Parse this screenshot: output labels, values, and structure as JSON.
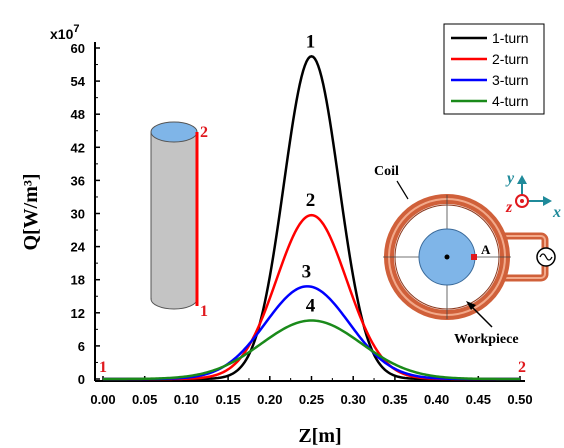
{
  "chart_data": {
    "type": "line",
    "xlabel": "Z[m]",
    "ylabel": "Q[W/m³]",
    "y_multiplier": "x10",
    "y_multiplier_exp": "7",
    "xlim": [
      0.0,
      0.5
    ],
    "ylim": [
      0,
      60
    ],
    "x_ticks": [
      "0.00",
      "0.05",
      "0.10",
      "0.15",
      "0.20",
      "0.25",
      "0.30",
      "0.35",
      "0.40",
      "0.45",
      "0.50"
    ],
    "y_ticks": [
      "0",
      "6",
      "12",
      "18",
      "24",
      "30",
      "36",
      "42",
      "48",
      "54",
      "60"
    ],
    "legend_position": "top-right",
    "series": [
      {
        "name": "1-turn",
        "color": "#000000",
        "label": "1",
        "peak_x": 0.25,
        "peak_y": 58.5,
        "sigma": 0.033
      },
      {
        "name": "2-turn",
        "color": "#ff0000",
        "label": "2",
        "peak_x": 0.25,
        "peak_y": 29.7,
        "sigma": 0.042
      },
      {
        "name": "3-turn",
        "color": "#0000ff",
        "label": "3",
        "peak_x": 0.245,
        "peak_y": 16.8,
        "sigma": 0.05
      },
      {
        "name": "4-turn",
        "color": "#1a8a1a",
        "label": "4",
        "peak_x": 0.25,
        "peak_y": 10.6,
        "sigma": 0.06
      }
    ],
    "annotations": {
      "left_end_label": "1",
      "right_end_label": "2",
      "cylinder_top_label": "2",
      "cylinder_bottom_label": "1"
    }
  },
  "inset": {
    "coil_label": "Coil",
    "workpiece_label": "Workpiece",
    "point_label": "A",
    "axis_y": "y",
    "axis_z": "z",
    "axis_x": "x"
  }
}
